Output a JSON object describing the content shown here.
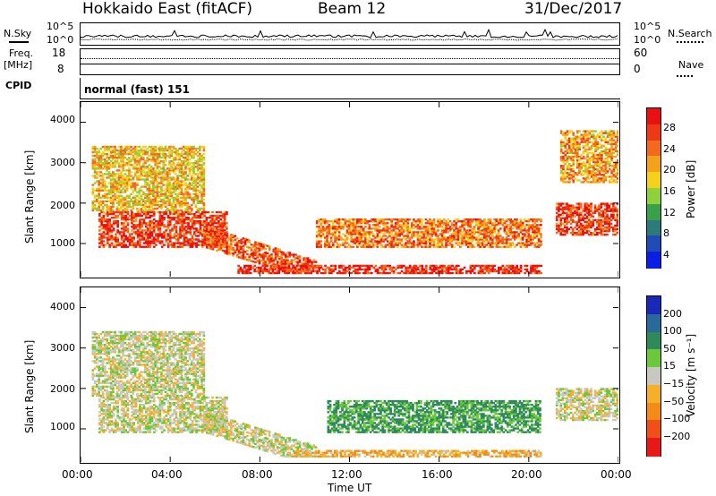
{
  "header": {
    "radar": "Hokkaido East (fitACF)",
    "beam": "Beam 12",
    "date": "31/Dec/2017"
  },
  "top_panels": {
    "nsky_label": "N.Sky",
    "nsky_ticks": [
      "10^5",
      "10^0"
    ],
    "nsearch_label": "N.Search",
    "nsearch_ticks": [
      "10^5",
      "10^0"
    ],
    "freq_label_1": "Freq.",
    "freq_label_2": "[MHz]",
    "freq_ticks": [
      "18",
      "8"
    ],
    "nave_label": "Nave",
    "nave_ticks": [
      "60",
      "0"
    ],
    "cpid_label": "CPID",
    "cpid_value": "normal (fast) 151"
  },
  "chart_data": [
    {
      "type": "heatmap",
      "title": "",
      "ylabel": "Slant Range [km]",
      "xlabel": "Time UT",
      "xlim": [
        "00:00",
        "24:00"
      ],
      "ylim": [
        180,
        4500
      ],
      "x_ticks": [
        "00:00",
        "04:00",
        "08:00",
        "12:00",
        "16:00",
        "20:00",
        "00:00"
      ],
      "y_ticks": [
        "1000",
        "2000",
        "3000",
        "4000"
      ],
      "colorbar": {
        "label": "Power [dB]",
        "ticks": [
          "4",
          "8",
          "12",
          "16",
          "20",
          "24",
          "28"
        ],
        "range": [
          0,
          30
        ],
        "colors": [
          "#0a1ee6",
          "#1e4bb4",
          "#2c7a7a",
          "#3aa04a",
          "#8ed13a",
          "#f4d21c",
          "#f4a21c",
          "#f46a1c",
          "#ee3a14",
          "#e81010"
        ]
      },
      "regions": [
        {
          "name": "dawn-backscatter-band",
          "t_start": 0.8,
          "t_end": 6.5,
          "r_low": 900,
          "r_high": 1800,
          "level": 26
        },
        {
          "name": "descending-band",
          "t_start": 5.5,
          "t_end": 10.5,
          "r_low": 300,
          "r_high": 1400,
          "level": 24
        },
        {
          "name": "evening-band",
          "t_start": 10.5,
          "t_end": 20.5,
          "r_low": 900,
          "r_high": 1600,
          "level": 22
        },
        {
          "name": "near-range-echoes",
          "t_start": 7.0,
          "t_end": 20.5,
          "r_low": 250,
          "r_high": 450,
          "level": 27
        },
        {
          "name": "far-range-patches",
          "t_start": 0.5,
          "t_end": 5.5,
          "r_low": 1800,
          "r_high": 3400,
          "level": 18
        },
        {
          "name": "late-band",
          "t_start": 21.2,
          "t_end": 24.0,
          "r_low": 1200,
          "r_high": 2000,
          "level": 26
        },
        {
          "name": "late-far-range",
          "t_start": 21.4,
          "t_end": 24.0,
          "r_low": 2500,
          "r_high": 3800,
          "level": 20
        }
      ]
    },
    {
      "type": "heatmap",
      "title": "",
      "ylabel": "Slant Range [km]",
      "xlabel": "Time UT",
      "xlim": [
        "00:00",
        "24:00"
      ],
      "ylim": [
        180,
        4500
      ],
      "x_ticks": [
        "00:00",
        "04:00",
        "08:00",
        "12:00",
        "16:00",
        "20:00",
        "00:00"
      ],
      "y_ticks": [
        "1000",
        "2000",
        "3000",
        "4000"
      ],
      "colorbar": {
        "label": "Velocity [m s⁻¹]",
        "ticks": [
          "200",
          "100",
          "50",
          "15",
          "−15",
          "−50",
          "−100",
          "−200"
        ],
        "colors": [
          "#1a28b8",
          "#2a6a9a",
          "#2e8a5a",
          "#6ac83a",
          "#c8c8c0",
          "#f4b028",
          "#f48a18",
          "#f05018",
          "#e81818"
        ]
      },
      "regions": [
        {
          "name": "dawn-band-ground-scatter",
          "t_start": 0.8,
          "t_end": 6.5,
          "r_low": 900,
          "r_high": 1800,
          "level": 0
        },
        {
          "name": "descending-band",
          "t_start": 5.5,
          "t_end": 10.5,
          "r_low": 300,
          "r_high": 1400,
          "level": 0
        },
        {
          "name": "evening-band-positive",
          "t_start": 11.0,
          "t_end": 20.5,
          "r_low": 900,
          "r_high": 1700,
          "level": 60
        },
        {
          "name": "near-range-negative",
          "t_start": 9.5,
          "t_end": 20.5,
          "r_low": 300,
          "r_high": 450,
          "level": -40
        },
        {
          "name": "early-far-range",
          "t_start": 0.5,
          "t_end": 5.5,
          "r_low": 1800,
          "r_high": 3400,
          "level": 0
        },
        {
          "name": "late-band",
          "t_start": 21.2,
          "t_end": 24.0,
          "r_low": 1200,
          "r_high": 2000,
          "level": 0
        }
      ]
    }
  ]
}
